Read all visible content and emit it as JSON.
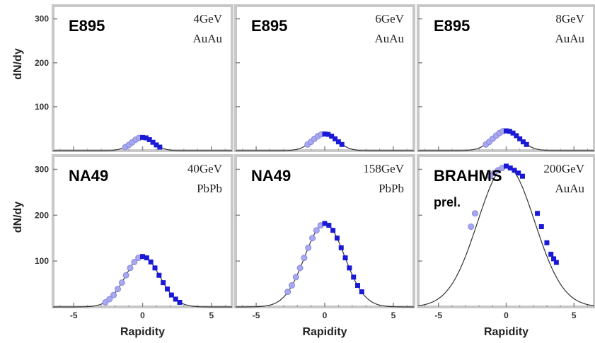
{
  "chart_data": {
    "type": "scatter",
    "xlabel": "Rapidity",
    "ylabel": "dN/dy",
    "xticks": [
      "-5",
      "0",
      "5"
    ],
    "yticks": [
      "100",
      "200",
      "300"
    ],
    "xlim": [
      -6.5,
      6.5
    ],
    "ylim": [
      0,
      330
    ],
    "panels": [
      {
        "experiment": "E895",
        "energy": "4GeV",
        "system": "AuAu",
        "gauss": {
          "amp": 30,
          "sigma": 0.8
        },
        "measured": {
          "x": [
            0.0,
            0.25,
            0.5,
            0.75,
            1.0,
            1.25
          ],
          "y": [
            30,
            29,
            25,
            19,
            13,
            8
          ]
        },
        "reflected": {
          "x": [
            -1.25,
            -1.0,
            -0.75,
            -0.5,
            -0.25
          ],
          "y": [
            8,
            13,
            19,
            25,
            29
          ]
        }
      },
      {
        "experiment": "E895",
        "energy": "6GeV",
        "system": "AuAu",
        "gauss": {
          "amp": 38,
          "sigma": 0.9
        },
        "measured": {
          "x": [
            0.0,
            0.25,
            0.5,
            0.75,
            1.0,
            1.25
          ],
          "y": [
            38,
            37,
            33,
            27,
            20,
            14
          ]
        },
        "reflected": {
          "x": [
            -1.25,
            -1.0,
            -0.75,
            -0.5,
            -0.25
          ],
          "y": [
            14,
            20,
            27,
            33,
            37
          ]
        }
      },
      {
        "experiment": "E895",
        "energy": "8GeV",
        "system": "AuAu",
        "gauss": {
          "amp": 45,
          "sigma": 1.0
        },
        "measured": {
          "x": [
            0.0,
            0.25,
            0.5,
            0.75,
            1.0,
            1.25,
            1.5
          ],
          "y": [
            45,
            44,
            40,
            34,
            27,
            20,
            14
          ]
        },
        "reflected": {
          "x": [
            -1.5,
            -1.25,
            -1.0,
            -0.75,
            -0.5,
            -0.25
          ],
          "y": [
            14,
            20,
            27,
            34,
            40,
            44
          ]
        }
      },
      {
        "experiment": "NA49",
        "energy": "40GeV",
        "system": "PbPb",
        "gauss": {
          "amp": 110,
          "sigma": 1.25
        },
        "measured": {
          "x": [
            0.0,
            0.3,
            0.6,
            0.9,
            1.2,
            1.5,
            1.8,
            2.1,
            2.4,
            2.7
          ],
          "y": [
            110,
            107,
            98,
            85,
            69,
            53,
            39,
            26,
            17,
            10
          ]
        },
        "reflected": {
          "x": [
            -2.7,
            -2.4,
            -2.1,
            -1.8,
            -1.5,
            -1.2,
            -0.9,
            -0.6,
            -0.3
          ],
          "y": [
            10,
            17,
            26,
            39,
            53,
            69,
            85,
            98,
            107
          ]
        }
      },
      {
        "experiment": "NA49",
        "energy": "158GeV",
        "system": "PbPb",
        "gauss": {
          "amp": 182,
          "sigma": 1.45
        },
        "measured": {
          "x": [
            0.0,
            0.3,
            0.6,
            0.9,
            1.2,
            1.5,
            1.8,
            2.1,
            2.4,
            2.7
          ],
          "y": [
            182,
            178,
            167,
            150,
            129,
            107,
            85,
            65,
            47,
            33
          ]
        },
        "reflected": {
          "x": [
            -2.7,
            -2.4,
            -2.1,
            -1.8,
            -1.5,
            -1.2,
            -0.9,
            -0.6,
            -0.3
          ],
          "y": [
            33,
            47,
            65,
            85,
            107,
            129,
            150,
            167,
            178
          ]
        }
      },
      {
        "experiment": "BRAHMS",
        "note": "prel.",
        "energy": "200GeV",
        "system": "AuAu",
        "gauss": {
          "amp": 307,
          "sigma": 2.1
        },
        "measured": {
          "x": [
            0.0,
            0.3,
            0.6,
            0.9,
            1.2,
            2.3,
            2.6,
            3.0,
            3.3,
            3.5,
            3.7
          ],
          "y": [
            307,
            303,
            298,
            292,
            285,
            204,
            175,
            140,
            115,
            105,
            97
          ]
        },
        "reflected": {
          "x": [
            -2.6,
            -2.3,
            -1.2,
            -0.9,
            -0.6,
            -0.3
          ],
          "y": [
            175,
            204,
            285,
            292,
            298,
            303
          ]
        }
      }
    ]
  }
}
